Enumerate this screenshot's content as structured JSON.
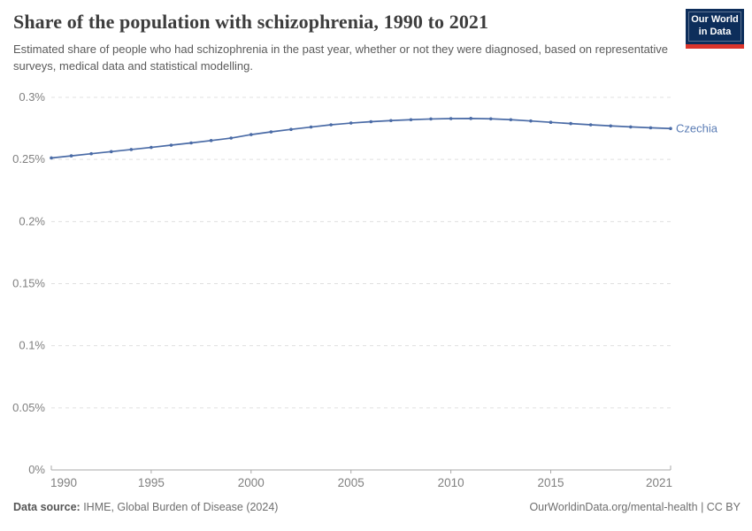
{
  "header": {
    "title": "Share of the population with schizophrenia, 1990 to 2021",
    "subtitle": "Estimated share of people who had schizophrenia in the past year, whether or not they were diagnosed, based on representative surveys, medical data and statistical modelling.",
    "logo": {
      "line1": "Our World",
      "line2": "in Data"
    }
  },
  "chart_data": {
    "type": "line",
    "title": "Share of the population with schizophrenia, 1990 to 2021",
    "entity": "Czechia",
    "x": [
      1990,
      1991,
      1992,
      1993,
      1994,
      1995,
      1996,
      1997,
      1998,
      1999,
      2000,
      2001,
      2002,
      2003,
      2004,
      2005,
      2006,
      2007,
      2008,
      2009,
      2010,
      2011,
      2012,
      2013,
      2014,
      2015,
      2016,
      2017,
      2018,
      2019,
      2020,
      2021
    ],
    "series": [
      {
        "name": "Czechia",
        "color": "#4a6ba6",
        "values": [
          0.2512,
          0.2529,
          0.2546,
          0.2563,
          0.258,
          0.2597,
          0.2615,
          0.2633,
          0.2652,
          0.2672,
          0.27,
          0.2722,
          0.2742,
          0.2761,
          0.2779,
          0.2793,
          0.2804,
          0.2813,
          0.282,
          0.2826,
          0.2829,
          0.283,
          0.2827,
          0.282,
          0.281,
          0.2799,
          0.2789,
          0.2779,
          0.277,
          0.2762,
          0.2755,
          0.2749
        ]
      }
    ],
    "xlabel": "",
    "ylabel": "",
    "ylim": [
      0,
      0.3
    ],
    "xlim": [
      1990,
      2021
    ],
    "yticks": [
      {
        "value": 0,
        "label": "0%"
      },
      {
        "value": 0.05,
        "label": "0.05%"
      },
      {
        "value": 0.1,
        "label": "0.1%"
      },
      {
        "value": 0.15,
        "label": "0.15%"
      },
      {
        "value": 0.2,
        "label": "0.2%"
      },
      {
        "value": 0.25,
        "label": "0.25%"
      },
      {
        "value": 0.3,
        "label": "0.3%"
      }
    ],
    "xticks": [
      {
        "value": 1990,
        "label": "1990"
      },
      {
        "value": 1995,
        "label": "1995"
      },
      {
        "value": 2000,
        "label": "2000"
      },
      {
        "value": 2005,
        "label": "2005"
      },
      {
        "value": 2010,
        "label": "2010"
      },
      {
        "value": 2015,
        "label": "2015"
      },
      {
        "value": 2021,
        "label": "2021"
      }
    ],
    "grid": "horizontal-dashed",
    "legend_position": "end-of-line-label"
  },
  "footer": {
    "source_label": "Data source:",
    "source_value": " IHME, Global Burden of Disease (2024)",
    "credit": "OurWorldinData.org/mental-health | CC BY"
  },
  "colors": {
    "line": "#4a6ba6",
    "entity_label": "#5b7db5",
    "gridline": "#e0e0e0",
    "axis": "#a8a8a8",
    "tick_text": "#808080",
    "title_text": "#3d3d3d",
    "subtitle_text": "#5b5b5b",
    "logo_bg": "#0d2e5b",
    "logo_stripe": "#dc352b"
  }
}
